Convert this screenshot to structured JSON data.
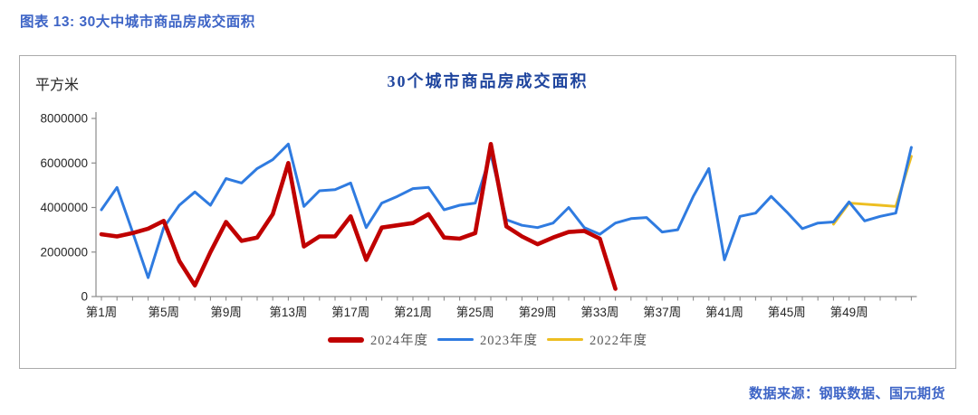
{
  "figure": {
    "header": "图表 13:  30大中城市商品房成交面积",
    "source_note": "数据来源：钢联数据、国元期货"
  },
  "chart_data": {
    "type": "line",
    "title": "30个城市商品房成交面积",
    "y_unit_label": "平方米",
    "ylabel": "平方米",
    "xlabel": "",
    "ylim": [
      0,
      8000000
    ],
    "y_ticks": [
      0,
      2000000,
      4000000,
      6000000,
      8000000
    ],
    "grid": false,
    "legend_position": "bottom",
    "x_total_weeks": 53,
    "x_tick_label_every": 4,
    "x_tick_labels": [
      "第1周",
      "第5周",
      "第9周",
      "第13周",
      "第17周",
      "第21周",
      "第25周",
      "第29周",
      "第33周",
      "第37周",
      "第41周",
      "第45周",
      "第49周"
    ],
    "series": [
      {
        "name": "2024年度",
        "color": "#C00000",
        "start_week": 1,
        "values": [
          2800000,
          2700000,
          2850000,
          3050000,
          3400000,
          1600000,
          500000,
          2000000,
          3350000,
          2500000,
          2650000,
          3700000,
          6000000,
          2250000,
          2700000,
          2700000,
          3600000,
          1650000,
          3100000,
          3200000,
          3300000,
          3700000,
          2650000,
          2600000,
          2850000,
          6850000,
          3150000,
          2700000,
          2350000,
          2650000,
          2900000,
          2950000,
          2600000,
          350000
        ]
      },
      {
        "name": "2023年度",
        "color": "#2F7BE0",
        "start_week": 1,
        "values": [
          3900000,
          4900000,
          2900000,
          850000,
          3100000,
          4100000,
          4700000,
          4100000,
          5300000,
          5100000,
          5750000,
          6150000,
          6850000,
          4050000,
          4750000,
          4800000,
          5100000,
          3100000,
          4200000,
          4500000,
          4850000,
          4900000,
          3900000,
          4100000,
          4200000,
          6400000,
          3450000,
          3200000,
          3100000,
          3300000,
          4000000,
          3100000,
          2800000,
          3300000,
          3500000,
          3550000,
          2900000,
          3000000,
          4500000,
          5750000,
          1650000,
          3600000,
          3750000,
          4500000,
          3800000,
          3050000,
          3300000,
          3350000,
          4250000,
          3400000,
          3600000,
          3750000,
          6700000
        ]
      },
      {
        "name": "2022年度",
        "color": "#EDBE21",
        "start_week": 48,
        "values": [
          3250000,
          4200000,
          4150000,
          4100000,
          4050000,
          6300000
        ]
      }
    ]
  }
}
